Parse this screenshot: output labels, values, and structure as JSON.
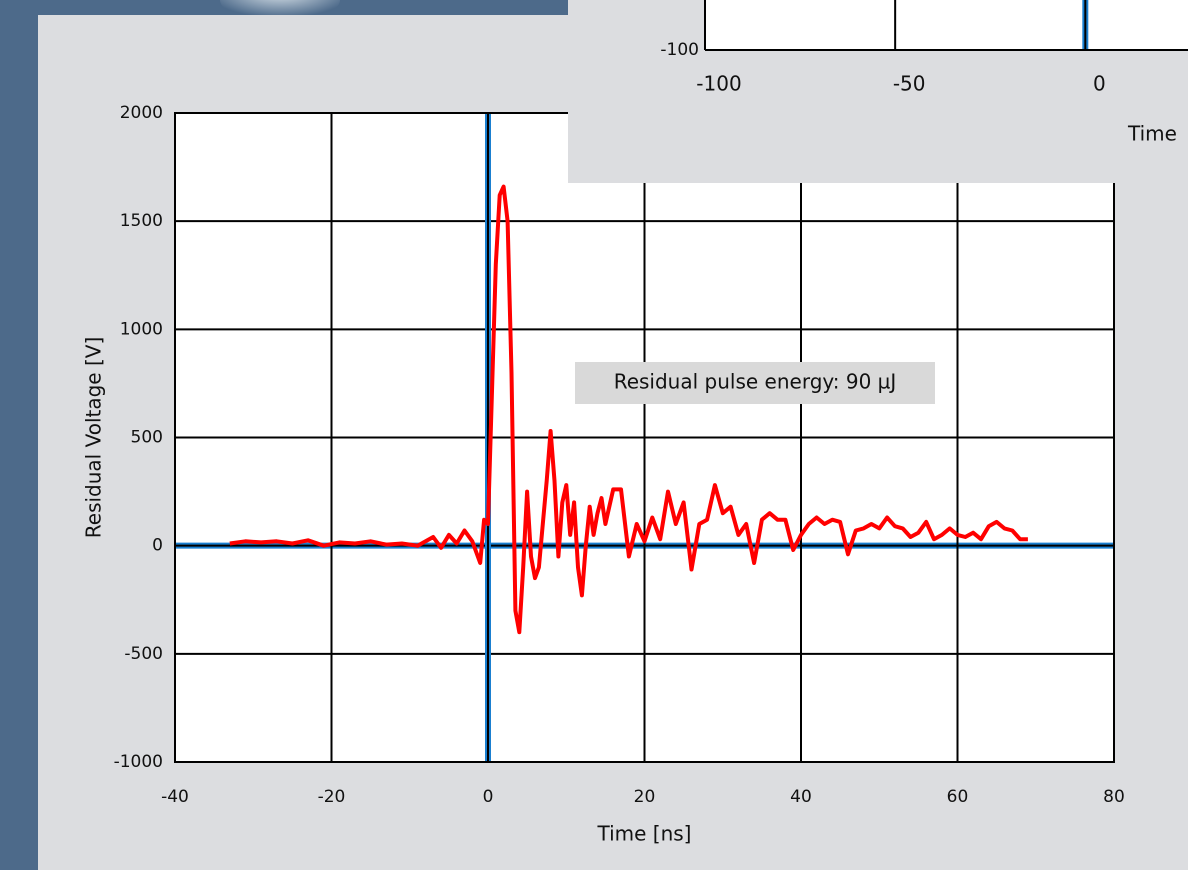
{
  "chart_data": [
    {
      "type": "line",
      "x_label": "Time [ns]",
      "y_label": "Residual Voltage [V]",
      "annotation": "Residual pulse energy: 90 µJ",
      "xlim": [
        -40,
        80
      ],
      "ylim": [
        -1000,
        2000
      ],
      "xticks": [
        -40,
        -20,
        0,
        20,
        40,
        60,
        80
      ],
      "yticks": [
        -1000,
        -500,
        0,
        500,
        1000,
        1500,
        2000
      ],
      "grid": true,
      "series": [
        {
          "color": "#ff0000",
          "x": [
            -33,
            -31,
            -29,
            -27,
            -25,
            -23,
            -21,
            -19,
            -17,
            -15,
            -13,
            -11,
            -9,
            -7,
            -6,
            -5,
            -4,
            -3,
            -2,
            -1,
            -0.5,
            0,
            0.5,
            1,
            1.5,
            2,
            2.5,
            3,
            3.5,
            4,
            4.5,
            5,
            5.5,
            6,
            6.5,
            7,
            7.5,
            8,
            8.5,
            9,
            9.5,
            10,
            10.5,
            11,
            11.5,
            12,
            12.5,
            13,
            13.5,
            14,
            14.5,
            15,
            16,
            17,
            18,
            19,
            20,
            21,
            22,
            23,
            24,
            25,
            26,
            27,
            28,
            29,
            30,
            31,
            32,
            33,
            34,
            35,
            36,
            37,
            38,
            39,
            40,
            41,
            42,
            43,
            44,
            45,
            46,
            47,
            48,
            49,
            50,
            51,
            52,
            53,
            54,
            55,
            56,
            57,
            58,
            59,
            60,
            61,
            62,
            63,
            64,
            65,
            66,
            67,
            68,
            69
          ],
          "values": [
            10,
            20,
            15,
            20,
            10,
            25,
            0,
            15,
            10,
            20,
            5,
            10,
            0,
            40,
            -10,
            50,
            10,
            70,
            20,
            -80,
            120,
            100,
            700,
            1300,
            1620,
            1660,
            1500,
            800,
            -300,
            -400,
            -100,
            250,
            -50,
            -150,
            -100,
            100,
            300,
            530,
            300,
            -50,
            200,
            280,
            50,
            200,
            -100,
            -230,
            0,
            180,
            50,
            150,
            220,
            100,
            260,
            260,
            -50,
            100,
            20,
            130,
            30,
            250,
            100,
            200,
            -110,
            100,
            120,
            280,
            150,
            180,
            50,
            100,
            -80,
            120,
            150,
            120,
            120,
            -20,
            50,
            100,
            130,
            100,
            120,
            110,
            -40,
            70,
            80,
            100,
            80,
            130,
            90,
            80,
            40,
            60,
            110,
            30,
            50,
            80,
            50,
            40,
            60,
            30,
            90,
            110,
            80,
            70,
            30,
            30
          ]
        }
      ]
    },
    {
      "type": "line",
      "x_label": "Time",
      "xlim": [
        -100,
        27
      ],
      "ylim": [
        -100,
        100
      ],
      "xticks": [
        -100,
        -50,
        0
      ],
      "yticks": [
        -100
      ],
      "grid": true,
      "series": []
    }
  ]
}
